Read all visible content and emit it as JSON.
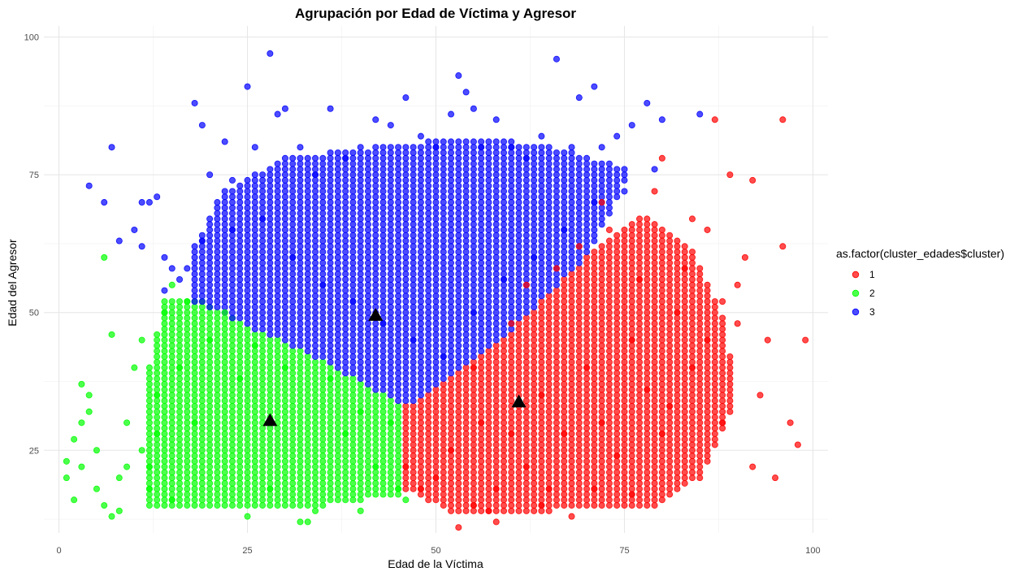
{
  "chart_data": {
    "type": "scatter",
    "title": "Agrupación por Edad de Víctima y Agresor",
    "xlabel": "Edad de la Víctima",
    "ylabel": "Edad del Agresor",
    "xlim": [
      -2,
      102
    ],
    "ylim": [
      10,
      102
    ],
    "x_ticks": [
      0,
      25,
      50,
      75,
      100
    ],
    "y_ticks": [
      25,
      50,
      75,
      100
    ],
    "grid": true,
    "legend": {
      "title": "as.factor(cluster_edades$cluster)",
      "position": "right",
      "entries": [
        "1",
        "2",
        "3"
      ]
    },
    "colors": {
      "1": "#ff0000",
      "2": "#00ff00",
      "3": "#0000ff",
      "centroid": "#000000"
    },
    "series": [
      {
        "name": "1",
        "color": "#ff0000",
        "points": [
          [
            46,
            22
          ],
          [
            48,
            18
          ],
          [
            50,
            20
          ],
          [
            52,
            25
          ],
          [
            55,
            15
          ],
          [
            56,
            30
          ],
          [
            58,
            18
          ],
          [
            60,
            28
          ],
          [
            62,
            22
          ],
          [
            64,
            35
          ],
          [
            65,
            18
          ],
          [
            67,
            28
          ],
          [
            70,
            40
          ],
          [
            72,
            30
          ],
          [
            74,
            24
          ],
          [
            76,
            45
          ],
          [
            78,
            36
          ],
          [
            80,
            28
          ],
          [
            82,
            50
          ],
          [
            84,
            40
          ],
          [
            86,
            45
          ],
          [
            88,
            30
          ],
          [
            90,
            55
          ],
          [
            92,
            22
          ],
          [
            94,
            45
          ],
          [
            96,
            62
          ],
          [
            97,
            30
          ],
          [
            98,
            26
          ],
          [
            96,
            85
          ],
          [
            87,
            85
          ],
          [
            89,
            75
          ],
          [
            92,
            74
          ],
          [
            79,
            72
          ],
          [
            80,
            78
          ],
          [
            72,
            70
          ],
          [
            66,
            58
          ],
          [
            60,
            48
          ],
          [
            55,
            40
          ],
          [
            58,
            12
          ],
          [
            68,
            13
          ],
          [
            76,
            17
          ],
          [
            85,
            20
          ],
          [
            95,
            20
          ],
          [
            93,
            35
          ],
          [
            91,
            60
          ],
          [
            86,
            65
          ],
          [
            84,
            67
          ],
          [
            99,
            45
          ],
          [
            64,
            15
          ],
          [
            53,
            11
          ],
          [
            57,
            14
          ],
          [
            71,
            18
          ],
          [
            81,
            33
          ],
          [
            77,
            56
          ],
          [
            69,
            62
          ],
          [
            62,
            55
          ],
          [
            73,
            65
          ],
          [
            88,
            52
          ],
          [
            90,
            48
          ],
          [
            83,
            58
          ]
        ],
        "fill_region": [
          [
            46,
            33
          ],
          [
            52,
            38
          ],
          [
            58,
            44
          ],
          [
            64,
            52
          ],
          [
            70,
            60
          ],
          [
            78,
            68
          ],
          [
            84,
            62
          ],
          [
            88,
            50
          ],
          [
            90,
            35
          ],
          [
            86,
            22
          ],
          [
            80,
            15
          ],
          [
            66,
            14
          ],
          [
            52,
            14
          ],
          [
            46,
            18
          ]
        ]
      },
      {
        "name": "2",
        "color": "#00ff00",
        "points": [
          [
            1,
            20
          ],
          [
            1,
            23
          ],
          [
            2,
            27
          ],
          [
            3,
            30
          ],
          [
            4,
            35
          ],
          [
            5,
            25
          ],
          [
            6,
            15
          ],
          [
            7,
            13
          ],
          [
            8,
            20
          ],
          [
            9,
            30
          ],
          [
            10,
            40
          ],
          [
            11,
            45
          ],
          [
            12,
            22
          ],
          [
            13,
            35
          ],
          [
            14,
            50
          ],
          [
            15,
            55
          ],
          [
            16,
            40
          ],
          [
            17,
            52
          ],
          [
            18,
            30
          ],
          [
            20,
            45
          ],
          [
            22,
            50
          ],
          [
            24,
            38
          ],
          [
            26,
            44
          ],
          [
            28,
            18
          ],
          [
            30,
            40
          ],
          [
            32,
            12
          ],
          [
            34,
            14
          ],
          [
            36,
            38
          ],
          [
            38,
            28
          ],
          [
            40,
            32
          ],
          [
            42,
            22
          ],
          [
            44,
            30
          ],
          [
            45,
            18
          ],
          [
            46,
            16
          ],
          [
            6,
            60
          ],
          [
            3,
            37
          ],
          [
            4,
            32
          ],
          [
            2,
            16
          ],
          [
            8,
            14
          ],
          [
            12,
            18
          ],
          [
            15,
            16
          ],
          [
            25,
            13
          ],
          [
            33,
            12
          ],
          [
            40,
            14
          ],
          [
            7,
            46
          ],
          [
            11,
            25
          ],
          [
            9,
            22
          ],
          [
            13,
            28
          ],
          [
            5,
            18
          ],
          [
            3,
            22
          ]
        ],
        "fill_region": [
          [
            12,
            15
          ],
          [
            12,
            40
          ],
          [
            14,
            52
          ],
          [
            18,
            53
          ],
          [
            26,
            47
          ],
          [
            34,
            42
          ],
          [
            42,
            36
          ],
          [
            46,
            33
          ],
          [
            46,
            17
          ],
          [
            36,
            15
          ],
          [
            22,
            15
          ]
        ]
      },
      {
        "name": "3",
        "color": "#0000ff",
        "points": [
          [
            4,
            73
          ],
          [
            6,
            70
          ],
          [
            7,
            80
          ],
          [
            8,
            63
          ],
          [
            10,
            65
          ],
          [
            11,
            70
          ],
          [
            12,
            70
          ],
          [
            13,
            71
          ],
          [
            14,
            60
          ],
          [
            15,
            58
          ],
          [
            16,
            56
          ],
          [
            18,
            88
          ],
          [
            19,
            84
          ],
          [
            20,
            75
          ],
          [
            21,
            70
          ],
          [
            22,
            81
          ],
          [
            23,
            74
          ],
          [
            25,
            91
          ],
          [
            26,
            80
          ],
          [
            28,
            97
          ],
          [
            29,
            86
          ],
          [
            30,
            87
          ],
          [
            32,
            80
          ],
          [
            34,
            75
          ],
          [
            36,
            87
          ],
          [
            38,
            78
          ],
          [
            40,
            80
          ],
          [
            42,
            85
          ],
          [
            44,
            84
          ],
          [
            46,
            89
          ],
          [
            48,
            82
          ],
          [
            50,
            80
          ],
          [
            52,
            86
          ],
          [
            53,
            93
          ],
          [
            54,
            90
          ],
          [
            55,
            87
          ],
          [
            56,
            80
          ],
          [
            58,
            85
          ],
          [
            60,
            80
          ],
          [
            62,
            78
          ],
          [
            64,
            82
          ],
          [
            66,
            96
          ],
          [
            68,
            80
          ],
          [
            69,
            89
          ],
          [
            71,
            91
          ],
          [
            72,
            80
          ],
          [
            74,
            82
          ],
          [
            76,
            84
          ],
          [
            78,
            88
          ],
          [
            80,
            85
          ],
          [
            85,
            86
          ],
          [
            17,
            58
          ],
          [
            19,
            63
          ],
          [
            23,
            65
          ],
          [
            27,
            67
          ],
          [
            31,
            60
          ],
          [
            35,
            55
          ],
          [
            39,
            52
          ],
          [
            43,
            48
          ],
          [
            47,
            45
          ],
          [
            51,
            42
          ],
          [
            55,
            50
          ],
          [
            59,
            56
          ],
          [
            63,
            60
          ],
          [
            67,
            65
          ],
          [
            71,
            70
          ],
          [
            75,
            72
          ],
          [
            79,
            76
          ],
          [
            11,
            62
          ],
          [
            14,
            54
          ]
        ],
        "fill_region": [
          [
            18,
            52
          ],
          [
            26,
            47
          ],
          [
            34,
            42
          ],
          [
            42,
            36
          ],
          [
            46,
            33
          ],
          [
            52,
            38
          ],
          [
            58,
            44
          ],
          [
            64,
            52
          ],
          [
            70,
            60
          ],
          [
            74,
            70
          ],
          [
            76,
            76
          ],
          [
            66,
            80
          ],
          [
            56,
            82
          ],
          [
            42,
            80
          ],
          [
            30,
            78
          ],
          [
            22,
            72
          ],
          [
            18,
            62
          ]
        ]
      }
    ],
    "centroids": [
      {
        "cluster": "1",
        "x": 61,
        "y": 33.8
      },
      {
        "cluster": "2",
        "x": 28,
        "y": 30.4
      },
      {
        "cluster": "3",
        "x": 42,
        "y": 49.5
      }
    ]
  }
}
